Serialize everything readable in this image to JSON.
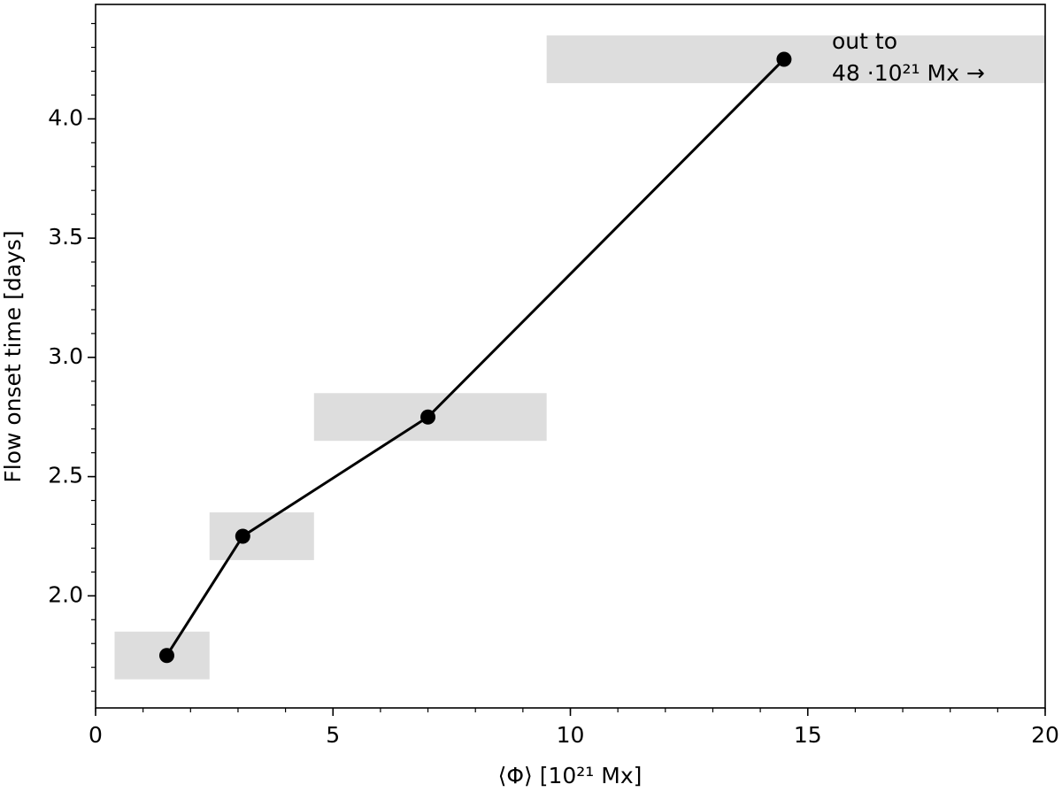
{
  "chart_data": {
    "type": "line",
    "x_label": "⟨Φ⟩ [10²¹ Mx]",
    "y_label": "Flow onset time [days]",
    "annotation": [
      "out to",
      "48 ·10²¹ Mx →"
    ],
    "x": [
      1.5,
      3.1,
      7.0,
      14.5
    ],
    "series": [
      {
        "color": "#000000",
        "values": [
          1.75,
          2.25,
          2.75,
          4.25
        ]
      }
    ],
    "ranges": [
      {
        "x": [
          0.4,
          2.4
        ],
        "y": [
          1.65,
          1.85
        ]
      },
      {
        "x": [
          2.4,
          4.6
        ],
        "y": [
          2.15,
          2.35
        ]
      },
      {
        "x": [
          4.6,
          9.5
        ],
        "y": [
          2.65,
          2.85
        ]
      },
      {
        "x": [
          9.5,
          20
        ],
        "y": [
          4.15,
          4.35
        ]
      }
    ],
    "range_color": "#dddddd",
    "xlim": [
      0,
      20
    ],
    "xticks": [
      0,
      5,
      10,
      15,
      20
    ],
    "xminorticks": [
      0,
      1,
      2,
      3,
      4,
      5,
      6,
      7,
      8,
      9,
      10,
      11,
      12,
      13,
      14,
      15,
      16,
      17,
      18,
      19,
      20
    ],
    "ylim": [
      1.53,
      4.48
    ],
    "yticks": [
      {
        "value": 2,
        "label": "2.0"
      },
      {
        "value": 2.5,
        "label": "2.5"
      },
      {
        "value": 3,
        "label": "3.0"
      },
      {
        "value": 3.5,
        "label": "3.5"
      },
      {
        "value": 4,
        "label": "4.0"
      }
    ],
    "yminorticks": [
      1.6,
      1.7,
      1.8,
      1.9,
      2.0,
      2.1,
      2.2,
      2.3,
      2.4,
      2.5,
      2.6,
      2.7,
      2.8,
      2.9,
      3.0,
      3.1,
      3.2,
      3.3,
      3.4,
      3.5,
      3.6,
      3.7,
      3.8,
      3.9,
      4.0,
      4.1,
      4.2,
      4.3,
      4.4
    ]
  }
}
